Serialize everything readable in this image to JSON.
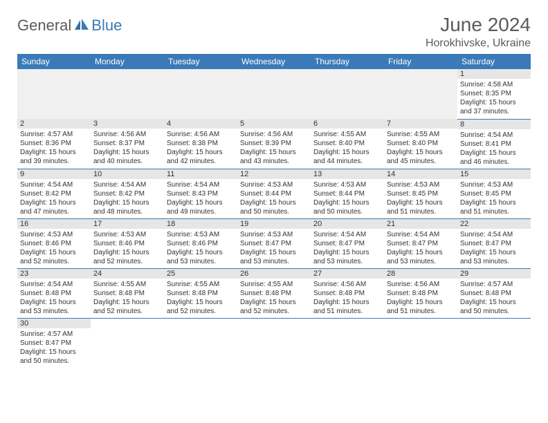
{
  "logo": {
    "text_general": "General",
    "text_blue": "Blue",
    "icon_color": "#3a7ab8"
  },
  "title": {
    "month_year": "June 2024",
    "location": "Horokhivske, Ukraine"
  },
  "colors": {
    "header_bg": "#3a7ab8",
    "header_text": "#ffffff",
    "daynum_bg": "#e6e6e6",
    "blank_bg": "#f0f0f0",
    "border": "#3a7ab8",
    "text": "#333333"
  },
  "day_headers": [
    "Sunday",
    "Monday",
    "Tuesday",
    "Wednesday",
    "Thursday",
    "Friday",
    "Saturday"
  ],
  "days": {
    "1": {
      "sunrise": "4:58 AM",
      "sunset": "8:35 PM",
      "daylight": "15 hours and 37 minutes."
    },
    "2": {
      "sunrise": "4:57 AM",
      "sunset": "8:36 PM",
      "daylight": "15 hours and 39 minutes."
    },
    "3": {
      "sunrise": "4:56 AM",
      "sunset": "8:37 PM",
      "daylight": "15 hours and 40 minutes."
    },
    "4": {
      "sunrise": "4:56 AM",
      "sunset": "8:38 PM",
      "daylight": "15 hours and 42 minutes."
    },
    "5": {
      "sunrise": "4:56 AM",
      "sunset": "8:39 PM",
      "daylight": "15 hours and 43 minutes."
    },
    "6": {
      "sunrise": "4:55 AM",
      "sunset": "8:40 PM",
      "daylight": "15 hours and 44 minutes."
    },
    "7": {
      "sunrise": "4:55 AM",
      "sunset": "8:40 PM",
      "daylight": "15 hours and 45 minutes."
    },
    "8": {
      "sunrise": "4:54 AM",
      "sunset": "8:41 PM",
      "daylight": "15 hours and 46 minutes."
    },
    "9": {
      "sunrise": "4:54 AM",
      "sunset": "8:42 PM",
      "daylight": "15 hours and 47 minutes."
    },
    "10": {
      "sunrise": "4:54 AM",
      "sunset": "8:42 PM",
      "daylight": "15 hours and 48 minutes."
    },
    "11": {
      "sunrise": "4:54 AM",
      "sunset": "8:43 PM",
      "daylight": "15 hours and 49 minutes."
    },
    "12": {
      "sunrise": "4:53 AM",
      "sunset": "8:44 PM",
      "daylight": "15 hours and 50 minutes."
    },
    "13": {
      "sunrise": "4:53 AM",
      "sunset": "8:44 PM",
      "daylight": "15 hours and 50 minutes."
    },
    "14": {
      "sunrise": "4:53 AM",
      "sunset": "8:45 PM",
      "daylight": "15 hours and 51 minutes."
    },
    "15": {
      "sunrise": "4:53 AM",
      "sunset": "8:45 PM",
      "daylight": "15 hours and 51 minutes."
    },
    "16": {
      "sunrise": "4:53 AM",
      "sunset": "8:46 PM",
      "daylight": "15 hours and 52 minutes."
    },
    "17": {
      "sunrise": "4:53 AM",
      "sunset": "8:46 PM",
      "daylight": "15 hours and 52 minutes."
    },
    "18": {
      "sunrise": "4:53 AM",
      "sunset": "8:46 PM",
      "daylight": "15 hours and 53 minutes."
    },
    "19": {
      "sunrise": "4:53 AM",
      "sunset": "8:47 PM",
      "daylight": "15 hours and 53 minutes."
    },
    "20": {
      "sunrise": "4:54 AM",
      "sunset": "8:47 PM",
      "daylight": "15 hours and 53 minutes."
    },
    "21": {
      "sunrise": "4:54 AM",
      "sunset": "8:47 PM",
      "daylight": "15 hours and 53 minutes."
    },
    "22": {
      "sunrise": "4:54 AM",
      "sunset": "8:47 PM",
      "daylight": "15 hours and 53 minutes."
    },
    "23": {
      "sunrise": "4:54 AM",
      "sunset": "8:48 PM",
      "daylight": "15 hours and 53 minutes."
    },
    "24": {
      "sunrise": "4:55 AM",
      "sunset": "8:48 PM",
      "daylight": "15 hours and 52 minutes."
    },
    "25": {
      "sunrise": "4:55 AM",
      "sunset": "8:48 PM",
      "daylight": "15 hours and 52 minutes."
    },
    "26": {
      "sunrise": "4:55 AM",
      "sunset": "8:48 PM",
      "daylight": "15 hours and 52 minutes."
    },
    "27": {
      "sunrise": "4:56 AM",
      "sunset": "8:48 PM",
      "daylight": "15 hours and 51 minutes."
    },
    "28": {
      "sunrise": "4:56 AM",
      "sunset": "8:48 PM",
      "daylight": "15 hours and 51 minutes."
    },
    "29": {
      "sunrise": "4:57 AM",
      "sunset": "8:48 PM",
      "daylight": "15 hours and 50 minutes."
    },
    "30": {
      "sunrise": "4:57 AM",
      "sunset": "8:47 PM",
      "daylight": "15 hours and 50 minutes."
    }
  },
  "labels": {
    "sunrise": "Sunrise:",
    "sunset": "Sunset:",
    "daylight": "Daylight:"
  },
  "grid": [
    [
      null,
      null,
      null,
      null,
      null,
      null,
      "1"
    ],
    [
      "2",
      "3",
      "4",
      "5",
      "6",
      "7",
      "8"
    ],
    [
      "9",
      "10",
      "11",
      "12",
      "13",
      "14",
      "15"
    ],
    [
      "16",
      "17",
      "18",
      "19",
      "20",
      "21",
      "22"
    ],
    [
      "23",
      "24",
      "25",
      "26",
      "27",
      "28",
      "29"
    ],
    [
      "30",
      null,
      null,
      null,
      null,
      null,
      null
    ]
  ]
}
